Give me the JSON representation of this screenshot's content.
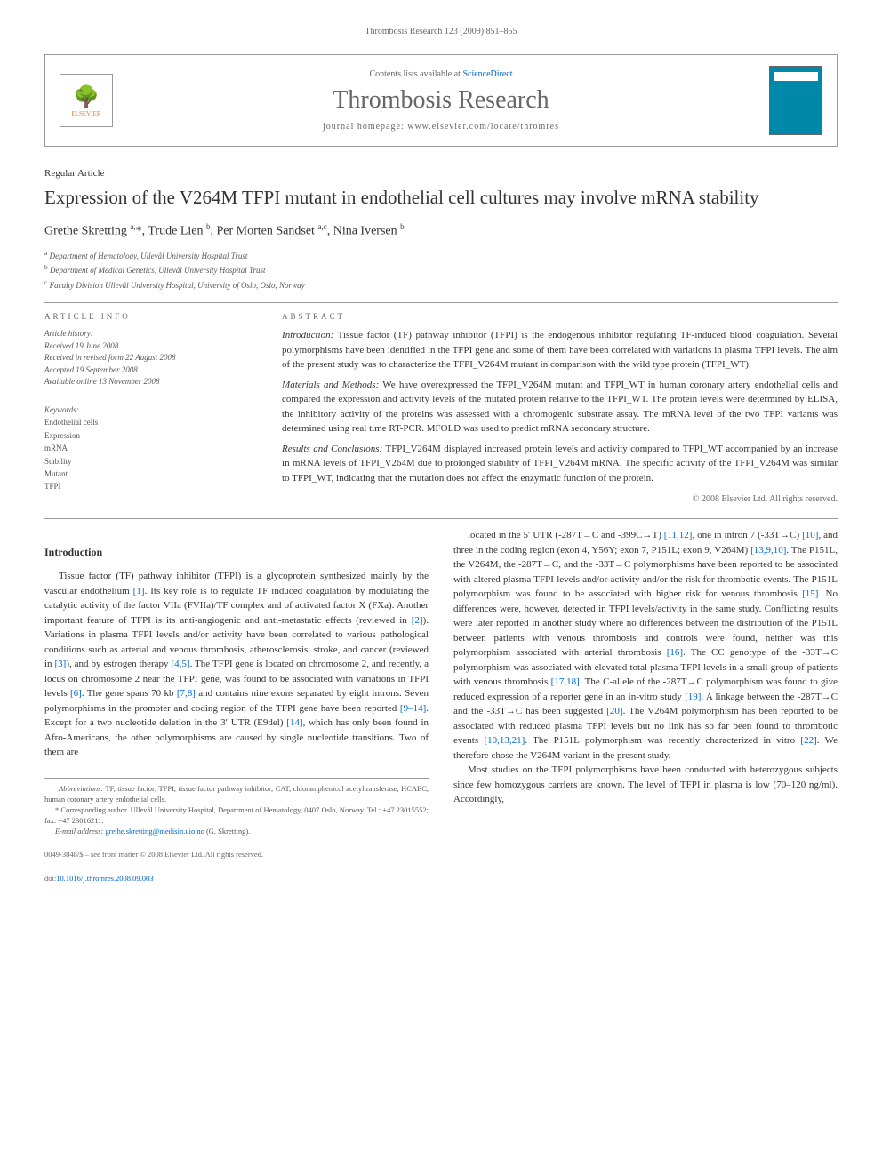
{
  "running_header": "Thrombosis Research 123 (2009) 851–855",
  "journal_box": {
    "contents_prefix": "Contents lists available at ",
    "sciencedirect": "ScienceDirect",
    "journal_title": "Thrombosis Research",
    "homepage_prefix": "journal homepage: ",
    "homepage": "www.elsevier.com/locate/thromres",
    "publisher": "ELSEVIER"
  },
  "article": {
    "type": "Regular Article",
    "title": "Expression of the V264M TFPI mutant in endothelial cell cultures may involve mRNA stability",
    "authors_html": "Grethe Skretting <sup>a,</sup>*, Trude Lien <sup>b</sup>, Per Morten Sandset <sup>a,c</sup>, Nina Iversen <sup>b</sup>",
    "affiliations": [
      {
        "sup": "a",
        "text": "Department of Hematology, Ullevål University Hospital Trust"
      },
      {
        "sup": "b",
        "text": "Department of Medical Genetics, Ullevål University Hospital Trust"
      },
      {
        "sup": "c",
        "text": "Faculty Division Ullevål University Hospital, University of Oslo, Oslo, Norway"
      }
    ]
  },
  "info": {
    "heading": "ARTICLE INFO",
    "history_label": "Article history:",
    "received": "Received 19 June 2008",
    "revised": "Received in revised form 22 August 2008",
    "accepted": "Accepted 19 September 2008",
    "online": "Available online 13 November 2008",
    "keywords_label": "Keywords:",
    "keywords": [
      "Endothelial cells",
      "Expression",
      "mRNA",
      "Stability",
      "Mutant",
      "TFPI"
    ]
  },
  "abstract": {
    "heading": "ABSTRACT",
    "intro_label": "Introduction:",
    "intro": "Tissue factor (TF) pathway inhibitor (TFPI) is the endogenous inhibitor regulating TF-induced blood coagulation. Several polymorphisms have been identified in the TFPI gene and some of them have been correlated with variations in plasma TFPI levels. The aim of the present study was to characterize the TFPI_V264M mutant in comparison with the wild type protein (TFPI_WT).",
    "methods_label": "Materials and Methods:",
    "methods": "We have overexpressed the TFPI_V264M mutant and TFPI_WT in human coronary artery endothelial cells and compared the expression and activity levels of the mutated protein relative to the TFPI_WT. The protein levels were determined by ELISA, the inhibitory activity of the proteins was assessed with a chromogenic substrate assay. The mRNA level of the two TFPI variants was determined using real time RT-PCR. MFOLD was used to predict mRNA secondary structure.",
    "results_label": "Results and Conclusions:",
    "results": "TFPI_V264M displayed increased protein levels and activity compared to TFPI_WT accompanied by an increase in mRNA levels of TFPI_V264M due to prolonged stability of TFPI_V264M mRNA. The specific activity of the TFPI_V264M was similar to TFPI_WT, indicating that the mutation does not affect the enzymatic function of the protein.",
    "copyright": "© 2008 Elsevier Ltd. All rights reserved."
  },
  "body": {
    "intro_heading": "Introduction",
    "left_p1": "Tissue factor (TF) pathway inhibitor (TFPI) is a glycoprotein synthesized mainly by the vascular endothelium [1]. Its key role is to regulate TF induced coagulation by modulating the catalytic activity of the factor VIIa (FVIIa)/TF complex and of activated factor X (FXa). Another important feature of TFPI is its anti-angiogenic and anti-metastatic effects (reviewed in [2]). Variations in plasma TFPI levels and/or activity have been correlated to various pathological conditions such as arterial and venous thrombosis, atherosclerosis, stroke, and cancer (reviewed in [3]), and by estrogen therapy [4,5]. The TFPI gene is located on chromosome 2, and recently, a locus on chromosome 2 near the TFPI gene, was found to be associated with variations in TFPI levels [6]. The gene spans 70 kb [7,8] and contains nine exons separated by eight introns. Seven polymorphisms in the promoter and coding region of the TFPI gene have been reported [9–14]. Except for a two nucleotide deletion in the 3′ UTR (E9del) [14], which has only been found in Afro-Americans, the other polymorphisms are caused by single nucleotide transitions. Two of them are",
    "right_p1": "located in the 5′ UTR (-287T→C and -399C→T) [11,12], one in intron 7 (-33T→C) [10], and three in the coding region (exon 4, Y56Y; exon 7, P151L; exon 9, V264M) [13,9,10]. The P151L, the V264M, the -287T→C, and the -33T→C polymorphisms have been reported to be associated with altered plasma TFPI levels and/or activity and/or the risk for thrombotic events. The P151L polymorphism was found to be associated with higher risk for venous thrombosis [15]. No differences were, however, detected in TFPI levels/activity in the same study. Conflicting results were later reported in another study where no differences between the distribution of the P151L between patients with venous thrombosis and controls were found, neither was this polymorphism associated with arterial thrombosis [16]. The CC genotype of the -33T→C polymorphism was associated with elevated total plasma TFPI levels in a small group of patients with venous thrombosis [17,18]. The C-allele of the -287T→C polymorphism was found to give reduced expression of a reporter gene in an in-vitro study [19]. A linkage between the -287T→C and the -33T→C has been suggested [20]. The V264M polymorphism has been reported to be associated with reduced plasma TFPI levels but no link has so far been found to thrombotic events [10,13,21]. The P151L polymorphism was recently characterized in vitro [22]. We therefore chose the V264M variant in the present study.",
    "right_p2": "Most studies on the TFPI polymorphisms have been conducted with heterozygous subjects since few homozygous carriers are known. The level of TFPI in plasma is low (70–120 ng/ml). Accordingly,"
  },
  "footnotes": {
    "abbrev_label": "Abbreviations:",
    "abbrev": "TF, tissue factor; TFPI, tissue factor pathway inhibitor; CAT, chloramphenicol acetyltransferase; HCAEC, human coronary artery endothelial cells.",
    "corresp": "* Corresponding author. Ullevål University Hospital, Department of Hematology, 0407 Oslo, Norway. Tel.: +47 23015552; fax: +47 23016211.",
    "email_label": "E-mail address:",
    "email": "grethe.skretting@medisin.uio.no",
    "email_suffix": "(G. Skretting)."
  },
  "footer": {
    "issn": "0049-3848/$ – see front matter © 2008 Elsevier Ltd. All rights reserved.",
    "doi_label": "doi:",
    "doi": "10.1016/j.thromres.2008.09.003"
  },
  "refs": {
    "r1": "[1]",
    "r2": "[2]",
    "r3": "[3]",
    "r45": "[4,5]",
    "r6": "[6]",
    "r78": "[7,8]",
    "r914": "[9–14]",
    "r14": "[14]",
    "r1112": "[11,12]",
    "r10": "[10]",
    "r13910": "[13,9,10]",
    "r15": "[15]",
    "r16": "[16]",
    "r1718": "[17,18]",
    "r19": "[19]",
    "r20": "[20]",
    "r101321": "[10,13,21]",
    "r22": "[22]"
  },
  "colors": {
    "link": "#0066cc",
    "elsevier_orange": "#e87722",
    "cover_blue": "#0088aa",
    "text": "#333333",
    "muted": "#666666",
    "border": "#999999"
  }
}
